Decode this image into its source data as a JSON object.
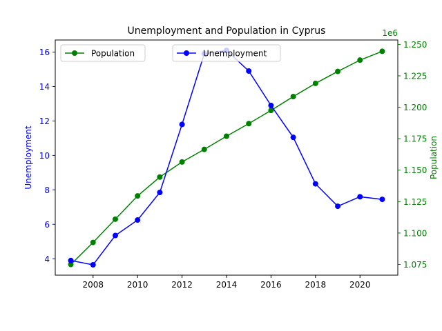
{
  "chart_data": {
    "type": "line",
    "title": "Unemployment and Population in Cyprus",
    "x": [
      2007,
      2008,
      2009,
      2010,
      2011,
      2012,
      2013,
      2014,
      2015,
      2016,
      2017,
      2018,
      2019,
      2020,
      2021
    ],
    "xlim": [
      2006.3,
      2021.7
    ],
    "x_ticks": [
      "2008",
      "2010",
      "2012",
      "2014",
      "2016",
      "2018",
      "2020"
    ],
    "y_left": {
      "label": "Unemployment",
      "color": "#0000ff",
      "ylim": [
        3.05,
        16.7
      ],
      "ticks": [
        "4",
        "6",
        "8",
        "10",
        "12",
        "14",
        "16"
      ]
    },
    "y_right": {
      "label": "Population",
      "color": "#008000",
      "offset_text": "1e6",
      "ylim": [
        1.0665,
        1.2535
      ],
      "ticks": [
        "1.075",
        "1.100",
        "1.125",
        "1.150",
        "1.175",
        "1.200",
        "1.225",
        "1.250"
      ]
    },
    "series": [
      {
        "name": "Unemployment",
        "axis": "left",
        "color": "#0000ff",
        "values": [
          3.9,
          3.65,
          5.35,
          6.25,
          7.85,
          11.8,
          15.9,
          16.1,
          14.9,
          12.9,
          11.05,
          8.35,
          7.05,
          7.6,
          7.45
        ]
      },
      {
        "name": "Population",
        "axis": "right",
        "color": "#008000",
        "values": [
          1.075,
          1.0925,
          1.111,
          1.1295,
          1.1445,
          1.1565,
          1.1665,
          1.177,
          1.187,
          1.1975,
          1.2085,
          1.219,
          1.2285,
          1.2375,
          1.2445
        ]
      }
    ],
    "grid": false,
    "legend": [
      {
        "label": "Population",
        "color": "#008000",
        "placement": "upper-left"
      },
      {
        "label": "Unemployment",
        "color": "#0000ff",
        "placement": "upper-center"
      }
    ]
  }
}
